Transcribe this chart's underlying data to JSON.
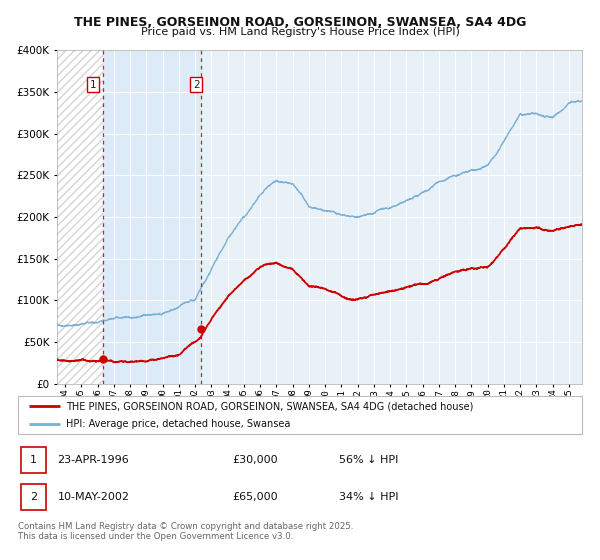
{
  "title1": "THE PINES, GORSEINON ROAD, GORSEINON, SWANSEA, SA4 4DG",
  "title2": "Price paid vs. HM Land Registry's House Price Index (HPI)",
  "bg_color": "#ffffff",
  "plot_bg_color": "#e8f0f8",
  "grid_color": "#ffffff",
  "hpi_color": "#7bafd4",
  "price_color": "#cc0000",
  "sale1_date_x": 1996.31,
  "sale1_price": 30000,
  "sale2_date_x": 2002.36,
  "sale2_price": 65000,
  "xmin": 1993.5,
  "xmax": 2025.8,
  "ymin": 0,
  "ymax": 400000,
  "legend_hpi_label": "HPI: Average price, detached house, Swansea",
  "legend_price_label": "THE PINES, GORSEINON ROAD, GORSEINON, SWANSEA, SA4 4DG (detached house)",
  "table_row1": [
    "1",
    "23-APR-1996",
    "£30,000",
    "56% ↓ HPI"
  ],
  "table_row2": [
    "2",
    "10-MAY-2002",
    "£65,000",
    "34% ↓ HPI"
  ],
  "footnote": "Contains HM Land Registry data © Crown copyright and database right 2025.\nThis data is licensed under the Open Government Licence v3.0.",
  "shaded_region_start": 1996.31,
  "shaded_region_end": 2002.36
}
